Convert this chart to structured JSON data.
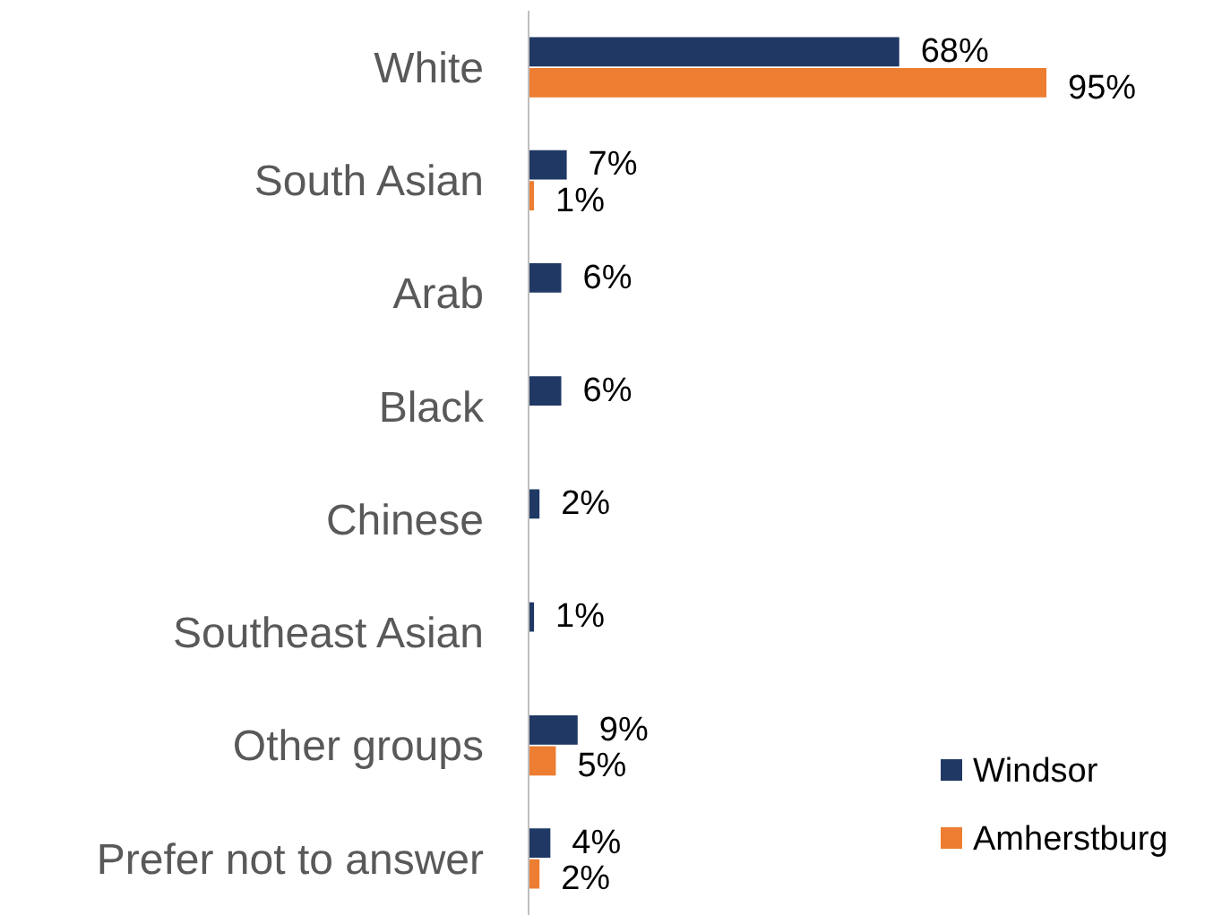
{
  "chart_data": {
    "type": "bar",
    "orientation": "horizontal",
    "categories": [
      "White",
      "South Asian",
      "Arab",
      "Black",
      "Chinese",
      "Southeast Asian",
      "Other groups",
      "Prefer not to answer"
    ],
    "series": [
      {
        "name": "Windsor",
        "color": "#203864",
        "values": [
          68,
          7,
          6,
          6,
          2,
          1,
          9,
          4
        ],
        "value_labels": [
          "68%",
          "7%",
          "6%",
          "6%",
          "2%",
          "1%",
          "9%",
          "4%"
        ]
      },
      {
        "name": "Amherstburg",
        "color": "#ed7d31",
        "values": [
          95,
          1,
          null,
          null,
          null,
          null,
          5,
          2
        ],
        "value_labels": [
          "95%",
          "1%",
          null,
          null,
          null,
          null,
          "5%",
          "2%"
        ]
      }
    ],
    "tick_labels": "y",
    "legend": "bottom right"
  }
}
